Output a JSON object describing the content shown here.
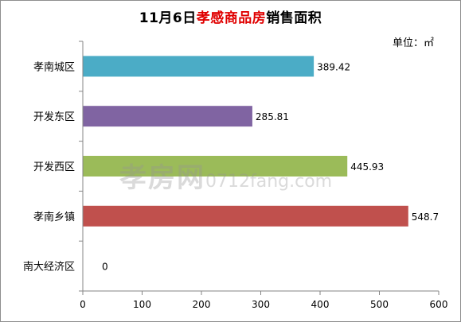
{
  "chart_data": {
    "type": "bar",
    "orientation": "horizontal",
    "title_prefix": "11月6日",
    "title_highlight": "孝感商品房",
    "title_suffix": "销售面积",
    "unit_label": "单位：㎡",
    "categories": [
      "孝南城区",
      "开发东区",
      "开发西区",
      "孝南乡镇",
      "南大经济区"
    ],
    "values": [
      389.42,
      285.81,
      445.93,
      548.7,
      0
    ],
    "value_labels": [
      "389.42",
      "285.81",
      "445.93",
      "548.7",
      "0"
    ],
    "bar_colors": [
      "#4bacc6",
      "#8064a2",
      "#9bbb59",
      "#c0504d",
      "#4f81bd"
    ],
    "xlim": [
      0,
      600
    ],
    "x_ticks": [
      0,
      100,
      200,
      300,
      400,
      500,
      600
    ],
    "x_tick_labels": [
      "0",
      "100",
      "200",
      "300",
      "400",
      "500",
      "600"
    ],
    "grid": false,
    "legend": "none"
  },
  "watermark": {
    "main": "孝房网",
    "url": "0712fang.com"
  }
}
